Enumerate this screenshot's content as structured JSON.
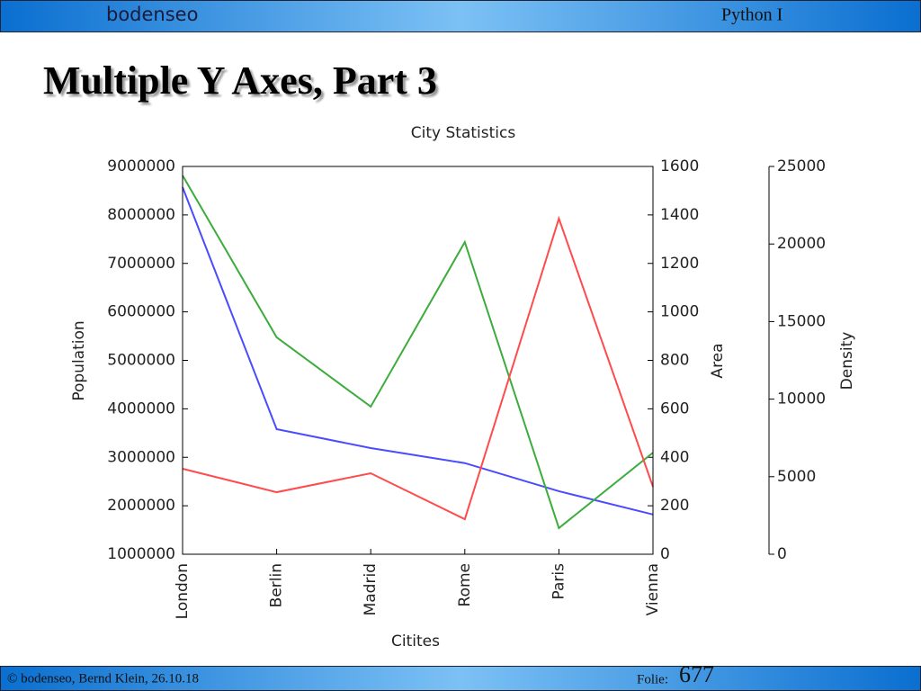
{
  "header": {
    "logo": "bodenseo",
    "course": "Python I"
  },
  "slide_title": "Multiple Y Axes, Part 3",
  "footer": {
    "credit": "© bodenseo, Bernd Klein, 26.10.18",
    "slide_label": "Folie:",
    "slide_number": "677"
  },
  "chart_data": {
    "type": "line",
    "title": "City Statistics",
    "xlabel": "Citites",
    "ylabel": "Population",
    "y2label": "Area",
    "y3label": "Density",
    "categories": [
      "London",
      "Berlin",
      "Madrid",
      "Rome",
      "Paris",
      "Vienna"
    ],
    "ylim": [
      1000000,
      9000000
    ],
    "yticks": [
      1000000,
      2000000,
      3000000,
      4000000,
      5000000,
      6000000,
      7000000,
      8000000,
      9000000
    ],
    "y2lim": [
      0,
      1600
    ],
    "y2ticks": [
      0,
      200,
      400,
      600,
      800,
      1000,
      1200,
      1400,
      1600
    ],
    "y3lim": [
      0,
      25000
    ],
    "y3ticks": [
      0,
      5000,
      10000,
      15000,
      20000,
      25000
    ],
    "series": [
      {
        "name": "Population",
        "color": "#4b4bff",
        "axis": "y",
        "values": [
          8570000,
          3580000,
          3190000,
          2880000,
          2300000,
          1820000
        ]
      },
      {
        "name": "Area",
        "color": "#3cac3c",
        "axis": "y2",
        "values": [
          1563,
          895,
          609,
          1288,
          108,
          419
        ]
      },
      {
        "name": "Density",
        "color": "#ff4b4b",
        "axis": "y3",
        "values": [
          5510,
          4000,
          5220,
          2260,
          21640,
          4350
        ]
      }
    ]
  }
}
